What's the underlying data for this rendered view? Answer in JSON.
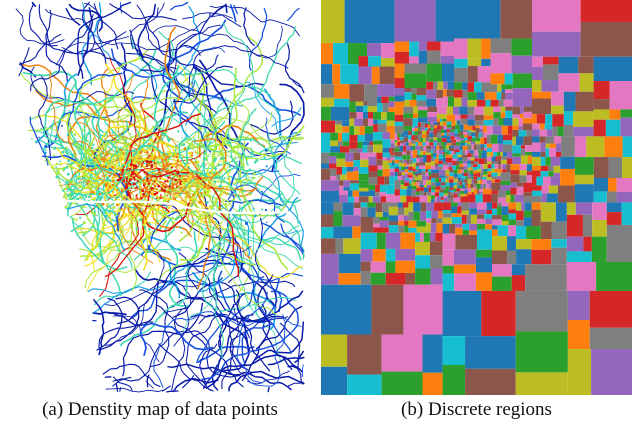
{
  "figure": {
    "captions": {
      "a": "(a) Denstity map of data points",
      "b": "(b) Discrete regions"
    },
    "density_palette": [
      "#0a1aa8",
      "#1550e0",
      "#18a0e8",
      "#40d8b0",
      "#a8e840",
      "#f0e020",
      "#f08010",
      "#d81010"
    ],
    "region_palette": [
      "#7f7f7f",
      "#e377c2",
      "#2ca02c",
      "#bcbd22",
      "#9467bd",
      "#1f77b4",
      "#ff7f0e",
      "#d62728",
      "#8c564b",
      "#17becf"
    ]
  }
}
